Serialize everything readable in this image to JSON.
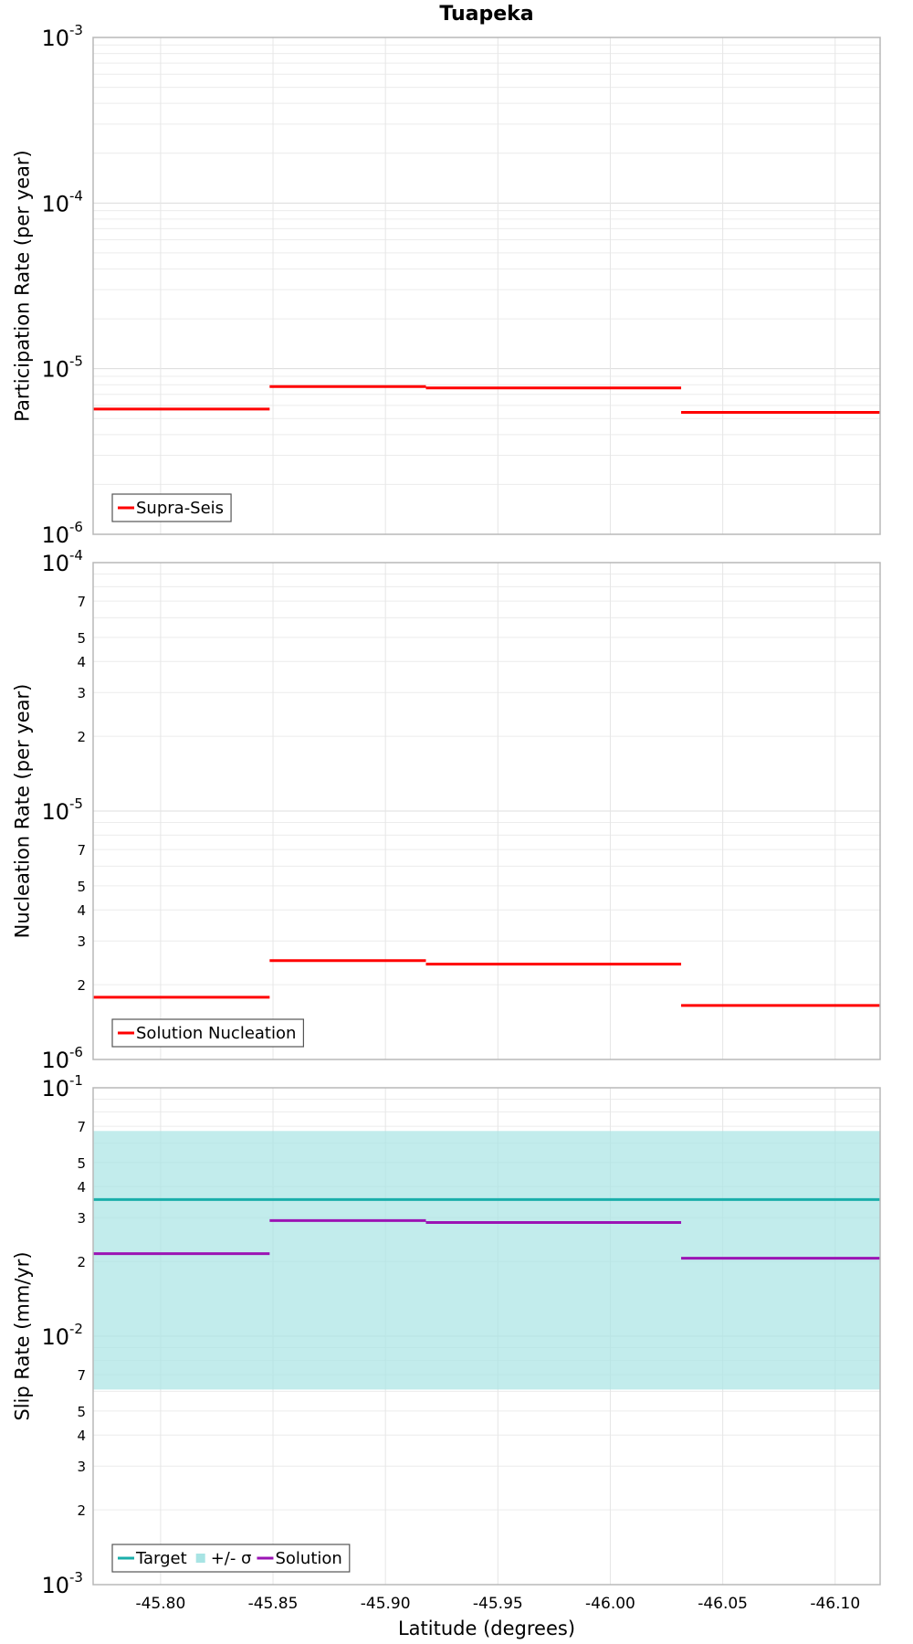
{
  "chart_data": {
    "title": "Tuapeka",
    "xlabel": "Latitude (degrees)",
    "xlim": [
      -45.77,
      -46.12
    ],
    "xticks": [
      -45.8,
      -45.85,
      -45.9,
      -45.95,
      -46.0,
      -46.05,
      -46.1
    ],
    "xtick_labels": [
      "-45.80",
      "-45.85",
      "-45.90",
      "-45.95",
      "-46.00",
      "-46.05",
      "-46.10"
    ],
    "panels": [
      {
        "type": "line",
        "scale": "log",
        "ylabel": "Participation Rate (per year)",
        "ylim": [
          1e-06,
          0.001
        ],
        "major_ticks": [
          {
            "value": 1e-06,
            "base": "10",
            "exp": "-6"
          },
          {
            "value": 1e-05,
            "base": "10",
            "exp": "-5"
          },
          {
            "value": 0.0001,
            "base": "10",
            "exp": "-4"
          },
          {
            "value": 0.001,
            "base": "10",
            "exp": "-3"
          }
        ],
        "minor_labels": [],
        "grid": true,
        "legend": "bottom-left",
        "series": [
          {
            "name": "Supra-Seis",
            "color": "#ff0000",
            "kind": "step",
            "segments": [
              {
                "x0": -45.77,
                "x1": -45.8485,
                "y": 5.7e-06
              },
              {
                "x0": -45.8485,
                "x1": -45.918,
                "y": 7.8e-06
              },
              {
                "x0": -45.918,
                "x1": -46.0315,
                "y": 7.65e-06
              },
              {
                "x0": -46.0315,
                "x1": -46.12,
                "y": 5.45e-06
              }
            ]
          }
        ],
        "bands": []
      },
      {
        "type": "line",
        "scale": "log",
        "ylabel": "Nucleation Rate (per year)",
        "ylim": [
          1e-06,
          0.0001
        ],
        "major_ticks": [
          {
            "value": 1e-06,
            "base": "10",
            "exp": "-6"
          },
          {
            "value": 1e-05,
            "base": "10",
            "exp": "-5"
          },
          {
            "value": 0.0001,
            "base": "10",
            "exp": "-4"
          }
        ],
        "minor_labels": [
          {
            "value": 2e-06,
            "label": "2"
          },
          {
            "value": 3e-06,
            "label": "3"
          },
          {
            "value": 4e-06,
            "label": "4"
          },
          {
            "value": 5e-06,
            "label": "5"
          },
          {
            "value": 7e-06,
            "label": "7"
          },
          {
            "value": 2e-05,
            "label": "2"
          },
          {
            "value": 3e-05,
            "label": "3"
          },
          {
            "value": 4e-05,
            "label": "4"
          },
          {
            "value": 5e-05,
            "label": "5"
          },
          {
            "value": 7e-05,
            "label": "7"
          }
        ],
        "grid": true,
        "legend": "bottom-left",
        "series": [
          {
            "name": "Solution Nucleation",
            "color": "#ff0000",
            "kind": "step",
            "segments": [
              {
                "x0": -45.77,
                "x1": -45.8485,
                "y": 1.78e-06
              },
              {
                "x0": -45.8485,
                "x1": -45.918,
                "y": 2.5e-06
              },
              {
                "x0": -45.918,
                "x1": -46.0315,
                "y": 2.42e-06
              },
              {
                "x0": -46.0315,
                "x1": -46.12,
                "y": 1.65e-06
              }
            ]
          }
        ],
        "bands": []
      },
      {
        "type": "line",
        "scale": "log",
        "ylabel": "Slip Rate (mm/yr)",
        "ylim": [
          0.001,
          0.1
        ],
        "major_ticks": [
          {
            "value": 0.001,
            "base": "10",
            "exp": "-3"
          },
          {
            "value": 0.01,
            "base": "10",
            "exp": "-2"
          },
          {
            "value": 0.1,
            "base": "10",
            "exp": "-1"
          }
        ],
        "minor_labels": [
          {
            "value": 0.002,
            "label": "2"
          },
          {
            "value": 0.003,
            "label": "3"
          },
          {
            "value": 0.004,
            "label": "4"
          },
          {
            "value": 0.005,
            "label": "5"
          },
          {
            "value": 0.007,
            "label": "7"
          },
          {
            "value": 0.02,
            "label": "2"
          },
          {
            "value": 0.03,
            "label": "3"
          },
          {
            "value": 0.04,
            "label": "4"
          },
          {
            "value": 0.05,
            "label": "5"
          },
          {
            "value": 0.07,
            "label": "7"
          }
        ],
        "grid": true,
        "legend": "bottom-left",
        "series": [
          {
            "name": "Target",
            "color": "#1aaeaa",
            "kind": "step",
            "segments": [
              {
                "x0": -45.77,
                "x1": -46.12,
                "y": 0.0355
              }
            ]
          },
          {
            "name": "Solution",
            "color": "#9b14b4",
            "kind": "step",
            "segments": [
              {
                "x0": -45.77,
                "x1": -45.8485,
                "y": 0.0215
              },
              {
                "x0": -45.8485,
                "x1": -45.918,
                "y": 0.0292
              },
              {
                "x0": -45.918,
                "x1": -46.0315,
                "y": 0.0287
              },
              {
                "x0": -46.0315,
                "x1": -46.12,
                "y": 0.0206
              }
            ]
          }
        ],
        "bands": [
          {
            "name": "+/- σ",
            "color": "#a8e4e4",
            "x0": -45.77,
            "x1": -46.12,
            "y_low": 0.0061,
            "y_high": 0.067
          }
        ],
        "legend_order": [
          "Target",
          "+/- σ",
          "Solution"
        ]
      }
    ]
  }
}
